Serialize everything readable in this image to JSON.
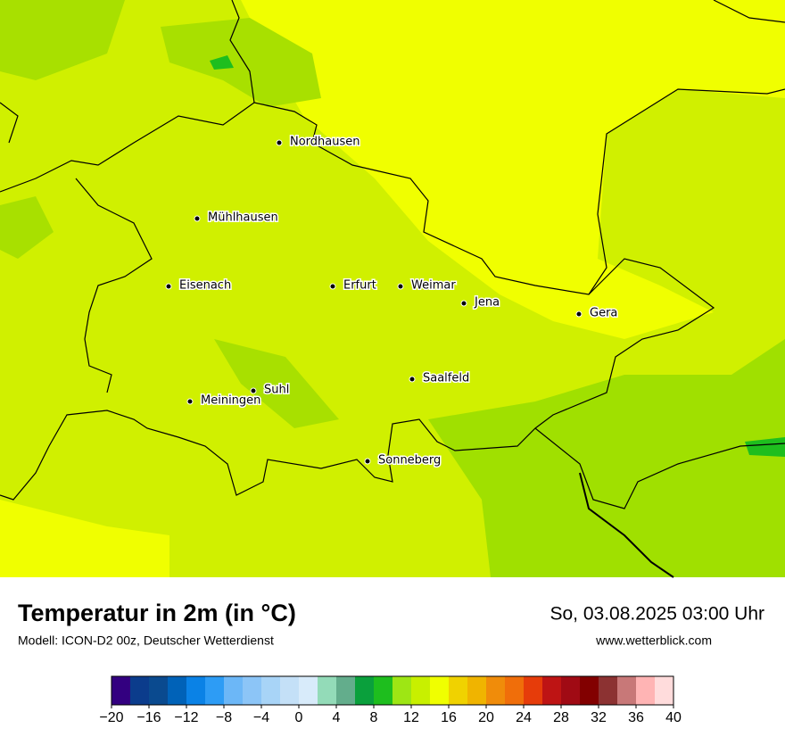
{
  "map": {
    "cities": [
      "Nordhausen",
      "Mühlhausen",
      "Eisenach",
      "Erfurt",
      "Weimar",
      "Jena",
      "Gera",
      "Suhl",
      "Meiningen",
      "Saalfeld",
      "Sonneberg"
    ]
  },
  "legend": {
    "title": "Temperatur in 2m (in °C)",
    "subtitle": "Modell: ICON-D2 00z, Deutscher Wetterdienst",
    "datetime": "So, 03.08.2025 03:00 Uhr",
    "source": "www.wetterblick.com"
  },
  "colorbar": {
    "lim": [
      -20,
      40
    ],
    "ticks": [
      {
        "value": -20,
        "label": "−20"
      },
      {
        "value": -16,
        "label": "−16"
      },
      {
        "value": -12,
        "label": "−12"
      },
      {
        "value": -8,
        "label": "−8"
      },
      {
        "value": -4,
        "label": "−4"
      },
      0,
      4,
      8,
      12,
      16,
      20,
      24,
      28,
      32,
      36,
      40
    ],
    "colors": [
      "#330080",
      "#0b3c8c",
      "#0a4a8f",
      "#0062b8",
      "#0a82e6",
      "#2d9cf5",
      "#6cb7f7",
      "#8cc5f7",
      "#a8d4f7",
      "#c4e0f7",
      "#d8ebfa",
      "#93dbb8",
      "#63ad8c",
      "#0aa03c",
      "#1ebe1e",
      "#9ee614",
      "#c8f000",
      "#f0ff00",
      "#f0d200",
      "#f0b400",
      "#f08c0a",
      "#f06e0a",
      "#e63c0a",
      "#be1414",
      "#a00a14",
      "#820000",
      "#8c3232",
      "#c87878",
      "#ffb4b4",
      "#ffdcdc"
    ]
  }
}
